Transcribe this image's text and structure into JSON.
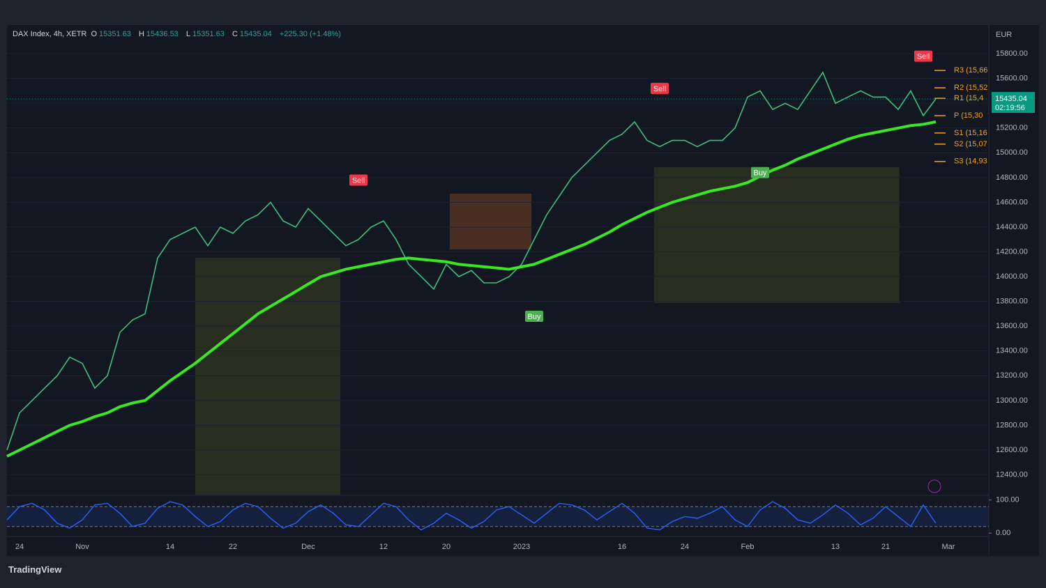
{
  "header": {
    "symbol": "DAX Index, 4h, XETR",
    "open_label": "O",
    "open": "15351.63",
    "high_label": "H",
    "high": "15436.53",
    "low_label": "L",
    "low": "15351.63",
    "close_label": "C",
    "close": "15435.04",
    "change": "+225.30 (+1.48%)"
  },
  "chart_data": [
    {
      "type": "line",
      "y_label": "EUR",
      "categories": [
        null,
        "24",
        null,
        null,
        null,
        null,
        "Nov",
        null,
        null,
        null,
        null,
        null,
        null,
        "14",
        null,
        null,
        null,
        null,
        "22",
        null,
        null,
        null,
        null,
        null,
        "Dec",
        null,
        null,
        null,
        null,
        null,
        "12",
        null,
        null,
        null,
        null,
        "20",
        null,
        null,
        null,
        null,
        null,
        "2023",
        null,
        null,
        null,
        null,
        null,
        null,
        null,
        "16",
        null,
        null,
        null,
        null,
        "24",
        null,
        null,
        null,
        null,
        "Feb",
        null,
        null,
        null,
        null,
        null,
        null,
        "13",
        null,
        null,
        null,
        "21",
        null,
        null,
        null,
        null,
        "Mar",
        null,
        null
      ],
      "series": [
        {
          "name": "DAX Index",
          "color": "#3fbf7f",
          "values": [
            12600,
            12900,
            13000,
            13100,
            13200,
            13350,
            13300,
            13100,
            13200,
            13550,
            13650,
            13700,
            14150,
            14300,
            14350,
            14400,
            14250,
            14400,
            14350,
            14450,
            14500,
            14600,
            14450,
            14400,
            14550,
            14450,
            14350,
            14250,
            14300,
            14400,
            14450,
            14300,
            14100,
            14000,
            13900,
            14100,
            14000,
            14050,
            13950,
            13950,
            14000,
            14100,
            14300,
            14500,
            14650,
            14800,
            14900,
            15000,
            15100,
            15150,
            15250,
            15100,
            15050,
            15100,
            15100,
            15050,
            15100,
            15100,
            15200,
            15450,
            15500,
            15350,
            15400,
            15350,
            15500,
            15650,
            15400,
            15450,
            15500,
            15450,
            15450,
            15350,
            15500,
            15300,
            15435.04,
            null,
            null,
            null
          ]
        },
        {
          "color": "#39e81f",
          "values": [
            12550,
            12600,
            12650,
            12700,
            12750,
            12800,
            12830,
            12870,
            12900,
            12950,
            12980,
            13000,
            13080,
            13160,
            13230,
            13300,
            13380,
            13460,
            13540,
            13620,
            13700,
            13760,
            13820,
            13880,
            13940,
            14000,
            14030,
            14060,
            14080,
            14100,
            14120,
            14140,
            14150,
            14140,
            14130,
            14120,
            14100,
            14090,
            14080,
            14070,
            14060,
            14080,
            14100,
            14140,
            14180,
            14220,
            14260,
            14310,
            14360,
            14420,
            14470,
            14520,
            14560,
            14600,
            14630,
            14660,
            14690,
            14710,
            14730,
            14760,
            14810,
            14860,
            14900,
            14950,
            14990,
            15030,
            15070,
            15110,
            15140,
            15160,
            15180,
            15200,
            15220,
            15230,
            15250,
            null,
            null,
            null
          ]
        }
      ],
      "ylim": [
        12240,
        16020
      ],
      "yticks": [
        {
          "value": 12400,
          "label": "12400.00"
        },
        {
          "value": 12600,
          "label": "12600.00"
        },
        {
          "value": 12800,
          "label": "12800.00"
        },
        {
          "value": 13000,
          "label": "13000.00"
        },
        {
          "value": 13200,
          "label": "13200.00"
        },
        {
          "value": 13400,
          "label": "13400.00"
        },
        {
          "value": 13600,
          "label": "13600.00"
        },
        {
          "value": 13800,
          "label": "13800.00"
        },
        {
          "value": 14000,
          "label": "14000.00"
        },
        {
          "value": 14200,
          "label": "14200.00"
        },
        {
          "value": 14400,
          "label": "14400.00"
        },
        {
          "value": 14600,
          "label": "14600.00"
        },
        {
          "value": 14800,
          "label": "14800.00"
        },
        {
          "value": 15000,
          "label": "15000.00"
        },
        {
          "value": 15200,
          "label": "15200.00"
        },
        {
          "value": 15400,
          "label": "15400.00"
        },
        {
          "value": 15600,
          "label": "15600.00"
        },
        {
          "value": 15800,
          "label": "15800.00"
        }
      ],
      "last_price": {
        "value": 15435.04,
        "label": "15435.04",
        "countdown": "02:19:56",
        "color": "#089981"
      },
      "pivots": [
        {
          "label": "R3 (15,66",
          "value": 15665
        },
        {
          "label": "R2 (15,52",
          "value": 15525
        },
        {
          "label": "R1 (15,4",
          "value": 15440
        },
        {
          "label": "P (15,30",
          "value": 15300
        },
        {
          "label": "S1 (15,16",
          "value": 15160
        },
        {
          "label": "S2 (15,07",
          "value": 15070
        },
        {
          "label": "S3 (14,93",
          "value": 14930
        }
      ],
      "pivot_color": "#f7a21b",
      "signals": [
        {
          "text": "Sell",
          "x": 28,
          "value": 14780,
          "color": "#f23645"
        },
        {
          "text": "Sell",
          "x": 52,
          "value": 15520,
          "color": "#f23645"
        },
        {
          "text": "Sell",
          "x": 73,
          "value": 15780,
          "color": "#f23645"
        },
        {
          "text": "Buy",
          "x": 42,
          "value": 13680,
          "color": "#4caf50"
        },
        {
          "text": "Buy",
          "x": 60,
          "value": 14840,
          "color": "#4caf50"
        }
      ]
    },
    {
      "type": "line",
      "series": [
        {
          "color": "#2962ff",
          "values": [
            40,
            80,
            90,
            70,
            30,
            15,
            40,
            85,
            90,
            60,
            20,
            30,
            75,
            95,
            85,
            50,
            20,
            35,
            70,
            90,
            80,
            45,
            15,
            30,
            65,
            85,
            60,
            25,
            20,
            55,
            90,
            80,
            40,
            10,
            30,
            60,
            40,
            15,
            35,
            70,
            80,
            55,
            30,
            60,
            90,
            85,
            70,
            40,
            65,
            90,
            60,
            15,
            10,
            35,
            50,
            45,
            60,
            80,
            40,
            20,
            70,
            95,
            75,
            40,
            30,
            55,
            85,
            60,
            25,
            45,
            80,
            50,
            20,
            85,
            30,
            null,
            null,
            null
          ]
        }
      ],
      "ylim": [
        -10,
        112
      ],
      "yticks": [
        {
          "value": 0,
          "label": "0.00"
        },
        {
          "value": 100,
          "label": "100.00"
        }
      ],
      "bands": [
        20,
        80
      ]
    }
  ],
  "footer": {
    "brand": "TradingView"
  }
}
